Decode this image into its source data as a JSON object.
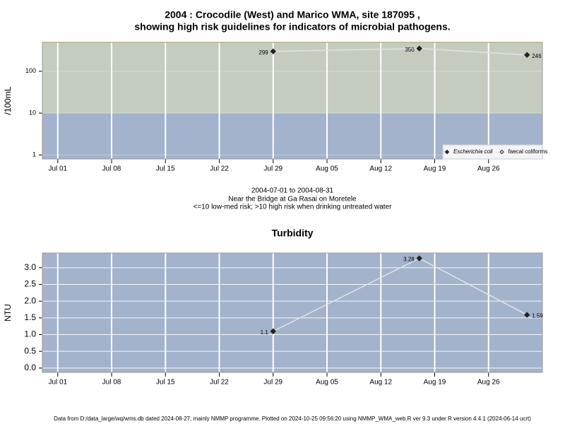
{
  "chart_data": [
    {
      "type": "line",
      "title": [
        "2004 : Crocodile (West) and Marico WMA, site 187095 ,",
        "showing high risk guidelines for indicators of microbial pathogens."
      ],
      "ylabel": "/100mL",
      "log_y": true,
      "threshold": 10,
      "band_colors": [
        "#a3b3cc",
        "#c4ccc0"
      ],
      "x": [
        "2004-07-29",
        "2004-08-17",
        "2004-08-31"
      ],
      "series": [
        {
          "name": "Escherichia coli",
          "color": "#e2e2e2",
          "marker_color": "#222222",
          "values": [
            299,
            350,
            246
          ]
        },
        {
          "name": "faecal coliforms",
          "color": "#e2e2e2",
          "marker_color": "#ffffff",
          "values": [
            null,
            null,
            null
          ]
        }
      ],
      "xlim": [
        "2004-06-29",
        "2004-09-02"
      ],
      "xticks": [
        {
          "value": "2004-07-01",
          "label": "Jul 01"
        },
        {
          "value": "2004-07-08",
          "label": "Jul 08"
        },
        {
          "value": "2004-07-15",
          "label": "Jul 15"
        },
        {
          "value": "2004-07-22",
          "label": "Jul 22"
        },
        {
          "value": "2004-07-29",
          "label": "Jul 29"
        },
        {
          "value": "2004-08-05",
          "label": "Aug 05"
        },
        {
          "value": "2004-08-12",
          "label": "Aug 12"
        },
        {
          "value": "2004-08-19",
          "label": "Aug 19"
        },
        {
          "value": "2004-08-26",
          "label": "Aug 26"
        }
      ],
      "ylim": [
        0.8,
        490
      ],
      "yticks": [
        1,
        10,
        100
      ],
      "grid": true,
      "legend": "lower right",
      "caption": [
        "2004-07-01 to 2004-08-31",
        "Near the Bridge at Ga Rasai on Moretele",
        "<=10 low-med risk; >10 high risk when drinking untreated water"
      ]
    },
    {
      "type": "line",
      "title": [
        "Turbidity"
      ],
      "ylabel": "NTU",
      "log_y": false,
      "background": "#a3b3cc",
      "x": [
        "2004-07-29",
        "2004-08-17",
        "2004-08-31"
      ],
      "series": [
        {
          "color": "#e2e2e2",
          "marker_color": "#222222",
          "values": [
            1.1,
            3.28,
            1.59
          ]
        }
      ],
      "xlim": [
        "2004-06-29",
        "2004-09-02"
      ],
      "xticks": [
        {
          "value": "2004-07-01",
          "label": "Jul 01"
        },
        {
          "value": "2004-07-08",
          "label": "Jul 08"
        },
        {
          "value": "2004-07-15",
          "label": "Jul 15"
        },
        {
          "value": "2004-07-22",
          "label": "Jul 22"
        },
        {
          "value": "2004-07-29",
          "label": "Jul 29"
        },
        {
          "value": "2004-08-05",
          "label": "Aug 05"
        },
        {
          "value": "2004-08-12",
          "label": "Aug 12"
        },
        {
          "value": "2004-08-19",
          "label": "Aug 19"
        },
        {
          "value": "2004-08-26",
          "label": "Aug 26"
        }
      ],
      "ylim": [
        -0.13,
        3.44
      ],
      "yticks": [
        {
          "value": 0,
          "label": "0.0"
        },
        {
          "value": 0.5,
          "label": "0.5"
        },
        {
          "value": 1,
          "label": "1.0"
        },
        {
          "value": 1.5,
          "label": "1.5"
        },
        {
          "value": 2,
          "label": "2.0"
        },
        {
          "value": 2.5,
          "label": "2.5"
        },
        {
          "value": 3,
          "label": "3.0"
        }
      ],
      "grid": true
    }
  ],
  "footer": "Data from D:/data_large/wq/wms.db dated 2024-08-27, mainly NMMP programme. Plotted on 2024-10-25 09:56:20 using NMMP_WMA_web.R ver 9.3 under R version 4.4.1 (2024-06-14 ucrt)"
}
